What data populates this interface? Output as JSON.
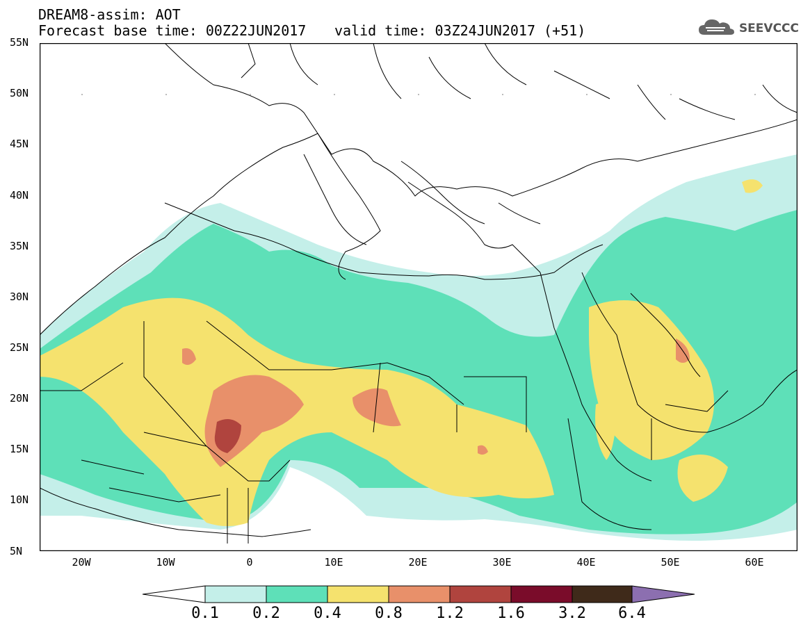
{
  "header": {
    "title": "DREAM8-assim: AOT",
    "base_time": "Forecast base time: 00Z22JUN2017",
    "valid_time": "valid time: 03Z24JUN2017 (+51)"
  },
  "logo": {
    "text": "SEEVCCC",
    "icon": "cloud-icon"
  },
  "map": {
    "variable": "Aerosol Optical Thickness",
    "lat_range": [
      5,
      55
    ],
    "lon_range": [
      -25,
      65
    ],
    "lat_labels": [
      "55N",
      "50N",
      "45N",
      "40N",
      "35N",
      "30N",
      "25N",
      "20N",
      "15N",
      "10N",
      "5N"
    ],
    "lon_labels": [
      "20W",
      "10W",
      "0",
      "10E",
      "20E",
      "30E",
      "40E",
      "50E",
      "60E"
    ]
  },
  "colorbar": {
    "levels": [
      "0.1",
      "0.2",
      "0.4",
      "0.8",
      "1.2",
      "1.6",
      "3.2",
      "6.4"
    ],
    "colors": [
      "#ffffff",
      "#c4efe9",
      "#5ee0b8",
      "#f5e26e",
      "#e8906a",
      "#b0443e",
      "#7a0c2a",
      "#3f2a1a",
      "#8c6fb0"
    ]
  }
}
